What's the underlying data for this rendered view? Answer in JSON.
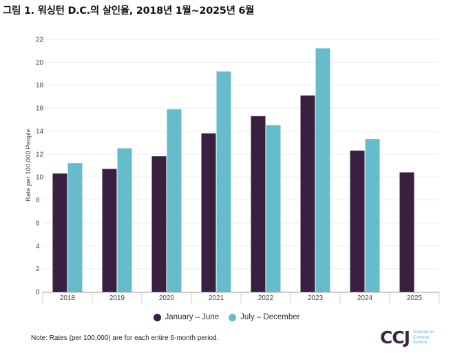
{
  "title": "그림 1. 워싱턴 D.C.의 살인율, 2018년 1월~2025년 6월",
  "note": "Note: Rates (per 100,000) are for each entire 6-month period.",
  "logo": {
    "mark": "CCJ",
    "line1": "Council on",
    "line2": "Criminal",
    "line3": "Justice"
  },
  "colors": {
    "jan_jun": "#3a2040",
    "jul_dec": "#66bccb"
  },
  "chart_data": {
    "type": "bar",
    "title": "그림 1. 워싱턴 D.C.의 살인율, 2018년 1월~2025년 6월",
    "xlabel": "",
    "ylabel": "Rate per 100,000 People",
    "ylim": [
      0,
      22
    ],
    "yticks": [
      0,
      2,
      4,
      6,
      8,
      10,
      12,
      14,
      16,
      18,
      20,
      22
    ],
    "grid": true,
    "legend_position": "bottom",
    "categories": [
      "2018",
      "2019",
      "2020",
      "2021",
      "2022",
      "2023",
      "2024",
      "2025"
    ],
    "series": [
      {
        "name": "January – June",
        "color": "#3a2040",
        "values": [
          10.3,
          10.7,
          11.8,
          13.8,
          15.3,
          17.1,
          12.3,
          10.4
        ]
      },
      {
        "name": "July – December",
        "color": "#66bccb",
        "values": [
          11.2,
          12.5,
          15.9,
          19.2,
          14.5,
          21.2,
          13.3,
          null
        ]
      }
    ]
  }
}
